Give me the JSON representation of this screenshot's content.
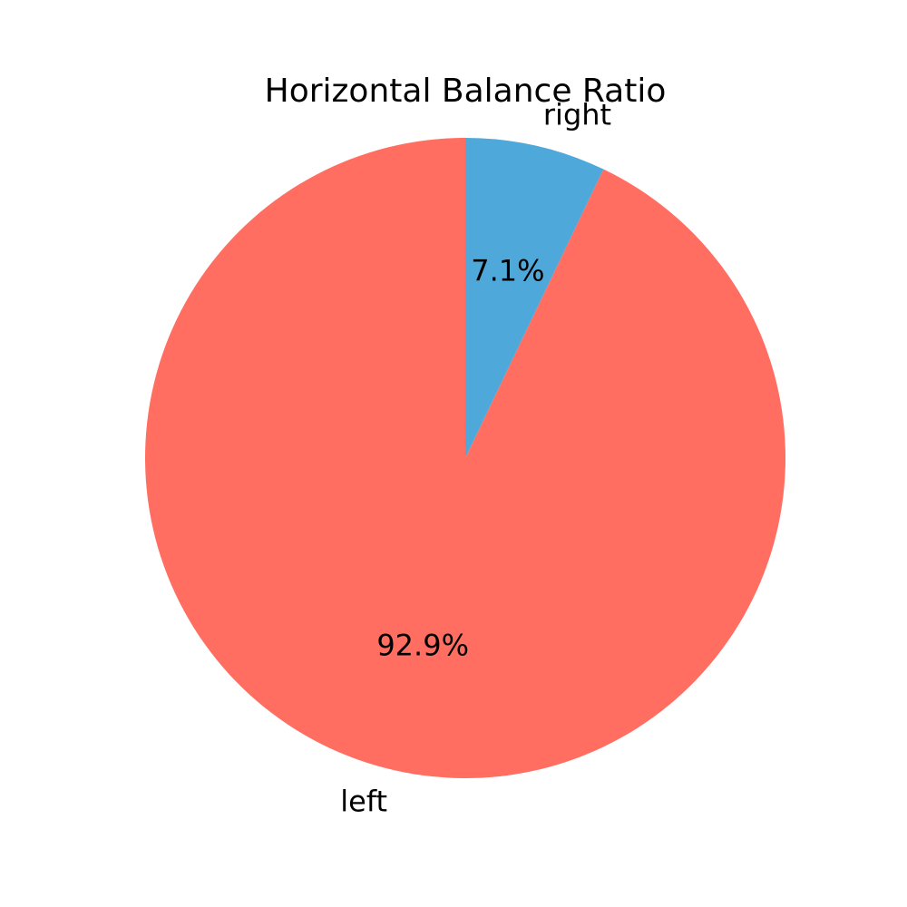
{
  "chart_data": {
    "type": "pie",
    "title": "Horizontal Balance Ratio",
    "start_angle": "top",
    "direction": "counterclockwise",
    "slices": [
      {
        "label": "left",
        "value": 92.9,
        "pct_label": "92.9%",
        "color": "#ff6e61"
      },
      {
        "label": "right",
        "value": 7.1,
        "pct_label": "7.1%",
        "color": "#4ea8da"
      }
    ]
  }
}
